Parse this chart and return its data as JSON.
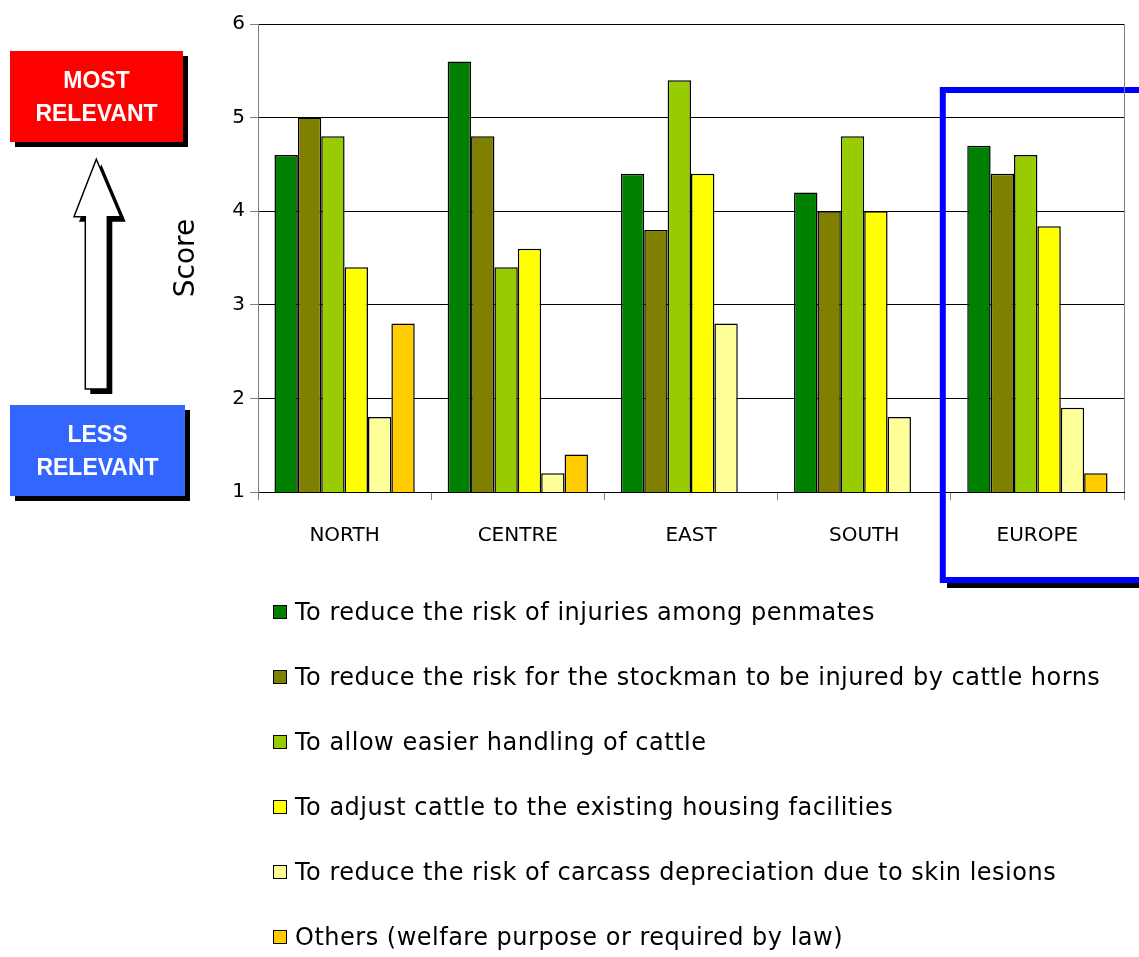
{
  "chart_data": {
    "type": "bar",
    "ylabel": "Score",
    "categories": [
      "NORTH",
      "CENTRE",
      "EAST",
      "SOUTH",
      "EUROPE"
    ],
    "series": [
      {
        "name": "To reduce the risk of injuries among penmates",
        "color": "#008000",
        "values": [
          4.6,
          5.6,
          4.4,
          4.2,
          4.7
        ]
      },
      {
        "name": "To reduce the risk for the stockman to be injured by cattle horns",
        "color": "#808000",
        "values": [
          5.0,
          4.8,
          3.8,
          4.0,
          4.4
        ]
      },
      {
        "name": "To allow easier handling of cattle",
        "color": "#99cc00",
        "values": [
          4.8,
          3.4,
          5.4,
          4.8,
          4.6
        ]
      },
      {
        "name": "To adjust cattle to the existing housing facilities",
        "color": "#ffff00",
        "values": [
          3.4,
          3.6,
          4.4,
          4.0,
          3.84
        ]
      },
      {
        "name": "To reduce the risk of carcass depreciation due to skin lesions",
        "color": "#ffff99",
        "values": [
          1.8,
          1.2,
          2.8,
          1.8,
          1.9
        ]
      },
      {
        "name": "Others (welfare purpose or required by law)",
        "color": "#ffcc00",
        "values": [
          2.8,
          1.4,
          null,
          null,
          1.2
        ]
      }
    ],
    "ylim": [
      1,
      6
    ],
    "yticks": [
      1,
      2,
      3,
      4,
      5,
      6
    ],
    "grid": "y",
    "legend": "bottom",
    "bands": [
      {
        "axis": "x",
        "from": "EUROPE",
        "to": "EUROPE",
        "color": "#0000ff"
      }
    ],
    "annotations": [
      "MOST RELEVANT",
      "LESS RELEVANT"
    ]
  }
}
